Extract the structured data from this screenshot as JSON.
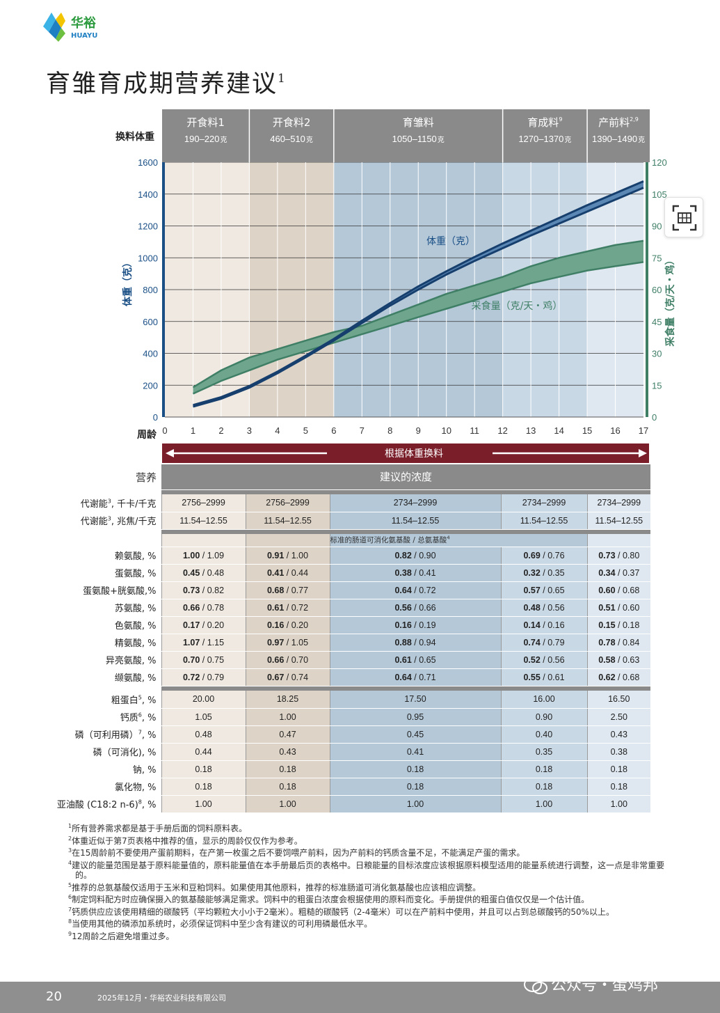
{
  "brand": {
    "name_cn": "华裕",
    "name_en": "HUAYU"
  },
  "title": "育雏育成期营养建议",
  "title_sup": "1",
  "stages": [
    {
      "name": "开食料1",
      "sup": "",
      "weight": "190–220",
      "unit": "克"
    },
    {
      "name": "开食料2",
      "sup": "",
      "weight": "460–510",
      "unit": "克"
    },
    {
      "name": "育雏料",
      "sup": "",
      "weight": "1050–1150",
      "unit": "克"
    },
    {
      "name": "育成料",
      "sup": "9",
      "weight": "1270–1370",
      "unit": "克"
    },
    {
      "name": "产前料",
      "sup": "2,9",
      "weight": "1390–1490",
      "unit": "克"
    }
  ],
  "change_weight_label": "换料体重",
  "week_label": "周龄",
  "arrow_bar_label": "根据体重换料",
  "chart_data": {
    "type": "area",
    "x_label": "周龄",
    "x": [
      0,
      1,
      2,
      3,
      4,
      5,
      6,
      7,
      8,
      9,
      10,
      11,
      12,
      13,
      14,
      15,
      16,
      17
    ],
    "y_left_label": "体重（克）",
    "y_left_ticks": [
      0,
      200,
      400,
      600,
      800,
      1000,
      1200,
      1400,
      1600
    ],
    "y_left_range": [
      0,
      1600
    ],
    "y_right_label": "采食量（克/天・鸡）",
    "y_right_ticks": [
      0,
      15,
      30,
      45,
      60,
      75,
      90,
      105,
      120
    ],
    "y_right_range": [
      0,
      120
    ],
    "series": [
      {
        "name": "体重（克）",
        "axis": "left",
        "x": [
          1,
          2,
          3,
          4,
          5,
          6,
          7,
          8,
          9,
          10,
          11,
          12,
          13,
          14,
          15,
          16,
          17
        ],
        "low": [
          65,
          115,
          185,
          275,
          375,
          480,
          590,
          700,
          800,
          895,
          980,
          1060,
          1140,
          1215,
          1290,
          1365,
          1440
        ],
        "high": [
          75,
          125,
          195,
          285,
          385,
          490,
          605,
          715,
          820,
          915,
          1005,
          1090,
          1170,
          1250,
          1330,
          1405,
          1480
        ]
      },
      {
        "name": "采食量（克/天・鸡）",
        "axis": "right",
        "x": [
          1,
          2,
          3,
          4,
          5,
          6,
          7,
          8,
          9,
          10,
          11,
          12,
          13,
          14,
          15,
          16,
          17
        ],
        "low": [
          11,
          17,
          22,
          27,
          31,
          35,
          39,
          43,
          47,
          51,
          55,
          59,
          63,
          66,
          69,
          71,
          73
        ],
        "high": [
          14,
          22,
          28,
          32,
          36,
          40,
          43,
          48,
          53,
          58,
          62,
          66,
          71,
          75,
          78,
          81,
          83
        ]
      }
    ],
    "grid": true
  },
  "table": {
    "header_label": "营养",
    "header_value": "建议的浓度",
    "energy_rows": [
      {
        "label": "代谢能",
        "sup": "3",
        "unit": ", 千卡/千克",
        "values": [
          "2756–2999",
          "2756–2999",
          "2734–2999",
          "2734–2999",
          "2734–2999"
        ]
      },
      {
        "label": "代谢能",
        "sup": "3",
        "unit": ", 兆焦/千克",
        "values": [
          "11.54–12.55",
          "11.54–12.55",
          "11.54–12.55",
          "11.54–12.55",
          "11.54–12.55"
        ]
      }
    ],
    "amino_subheader": "标准的肠道可消化氨基酸 / 总氨基酸",
    "amino_subheader_sup": "4",
    "amino_rows": [
      {
        "label": "赖氨酸, %",
        "values": [
          [
            "1.00",
            "1.09"
          ],
          [
            "0.91",
            "1.00"
          ],
          [
            "0.82",
            "0.90"
          ],
          [
            "0.69",
            "0.76"
          ],
          [
            "0.73",
            "0.80"
          ]
        ]
      },
      {
        "label": "蛋氨酸, %",
        "values": [
          [
            "0.45",
            "0.48"
          ],
          [
            "0.41",
            "0.44"
          ],
          [
            "0.38",
            "0.41"
          ],
          [
            "0.32",
            "0.35"
          ],
          [
            "0.34",
            "0.37"
          ]
        ]
      },
      {
        "label": "蛋氨酸+胱氨酸,%",
        "values": [
          [
            "0.73",
            "0.82"
          ],
          [
            "0.68",
            "0.77"
          ],
          [
            "0.64",
            "0.72"
          ],
          [
            "0.57",
            "0.65"
          ],
          [
            "0.60",
            "0.68"
          ]
        ]
      },
      {
        "label": "苏氨酸, %",
        "values": [
          [
            "0.66",
            "0.78"
          ],
          [
            "0.61",
            "0.72"
          ],
          [
            "0.56",
            "0.66"
          ],
          [
            "0.48",
            "0.56"
          ],
          [
            "0.51",
            "0.60"
          ]
        ]
      },
      {
        "label": "色氨酸, %",
        "values": [
          [
            "0.17",
            "0.20"
          ],
          [
            "0.16",
            "0.20"
          ],
          [
            "0.16",
            "0.19"
          ],
          [
            "0.14",
            "0.16"
          ],
          [
            "0.15",
            "0.18"
          ]
        ]
      },
      {
        "label": "精氨酸, %",
        "values": [
          [
            "1.07",
            "1.15"
          ],
          [
            "0.97",
            "1.05"
          ],
          [
            "0.88",
            "0.94"
          ],
          [
            "0.74",
            "0.79"
          ],
          [
            "0.78",
            "0.84"
          ]
        ]
      },
      {
        "label": "异亮氨酸, %",
        "values": [
          [
            "0.70",
            "0.75"
          ],
          [
            "0.66",
            "0.70"
          ],
          [
            "0.61",
            "0.65"
          ],
          [
            "0.52",
            "0.56"
          ],
          [
            "0.58",
            "0.63"
          ]
        ]
      },
      {
        "label": "缬氨酸, %",
        "values": [
          [
            "0.72",
            "0.79"
          ],
          [
            "0.67",
            "0.74"
          ],
          [
            "0.64",
            "0.71"
          ],
          [
            "0.55",
            "0.61"
          ],
          [
            "0.62",
            "0.68"
          ]
        ]
      }
    ],
    "other_rows": [
      {
        "label": "粗蛋白",
        "sup": "5",
        "unit": ", %",
        "values": [
          "20.00",
          "18.25",
          "17.50",
          "16.00",
          "16.50"
        ]
      },
      {
        "label": "钙质",
        "sup": "6",
        "unit": ", %",
        "values": [
          "1.05",
          "1.00",
          "0.95",
          "0.90",
          "2.50"
        ]
      },
      {
        "label": "磷（可利用磷）",
        "sup": "7",
        "unit": ", %",
        "values": [
          "0.48",
          "0.47",
          "0.45",
          "0.40",
          "0.43"
        ]
      },
      {
        "label": "磷（可消化), %",
        "sup": "",
        "unit": "",
        "values": [
          "0.44",
          "0.43",
          "0.41",
          "0.35",
          "0.38"
        ]
      },
      {
        "label": "钠, %",
        "sup": "",
        "unit": "",
        "values": [
          "0.18",
          "0.18",
          "0.18",
          "0.18",
          "0.18"
        ]
      },
      {
        "label": "氯化物, %",
        "sup": "",
        "unit": "",
        "values": [
          "0.18",
          "0.18",
          "0.18",
          "0.18",
          "0.18"
        ]
      },
      {
        "label": "亚油酸 (C18:2 n-6)",
        "sup": "8",
        "unit": ", %",
        "values": [
          "1.00",
          "1.00",
          "1.00",
          "1.00",
          "1.00"
        ]
      }
    ]
  },
  "footnotes": [
    {
      "n": "1",
      "text": "所有营养需求都是基于手册后面的饲料原料表。"
    },
    {
      "n": "2",
      "text": "体重近似于第7页表格中推荐的值，显示的周龄仅仅作为参考。"
    },
    {
      "n": "3",
      "text": "在15周龄前不要使用产蛋前期料，在产第一枚蛋之后不要饲喂产前料，因为产前料的钙质含量不足，不能满足产蛋的需求。"
    },
    {
      "n": "4",
      "text": "建议的能量范围是基于原料能量值的，原料能量值在本手册最后页的表格中。日粮能量的目标浓度应该根据原料模型适用的能量系统进行调整，这一点是非常重要的。"
    },
    {
      "n": "5",
      "text": "推荐的总氨基酸仅适用于玉米和豆粕饲料。如果使用其他原料，推荐的标准肠道可消化氨基酸也应该相应调整。"
    },
    {
      "n": "6",
      "text": "制定饲料配方时应确保摄入的氨基酸能够满足需求。饲料中的粗蛋白浓度会根据使用的原料而变化。手册提供的粗蛋白值仅仅是一个估计值。"
    },
    {
      "n": "7",
      "text": "钙质供应应该使用精细的碳酸钙（平均颗粒大小小于2毫米）。粗糙的碳酸钙（2-4毫米）可以在产前料中使用，并且可以占到总碳酸钙的50%以上。"
    },
    {
      "n": "8",
      "text": "当使用其他的磷添加系统时，必须保证饲料中至少含有建议的可利用磷最低水平。"
    },
    {
      "n": "9",
      "text": "12周龄之后避免增重过多。"
    }
  ],
  "footer": {
    "page_number": "20",
    "text": "2025年12月・华裕农业科技有限公司"
  },
  "watermark": "公众号・蛋鸡邦",
  "colors": {
    "weight_line": "#1a4a7a",
    "feed_band": "#3f7f66",
    "header_gray": "#8a8a8a",
    "arrow_bar": "#7a1e2a"
  }
}
